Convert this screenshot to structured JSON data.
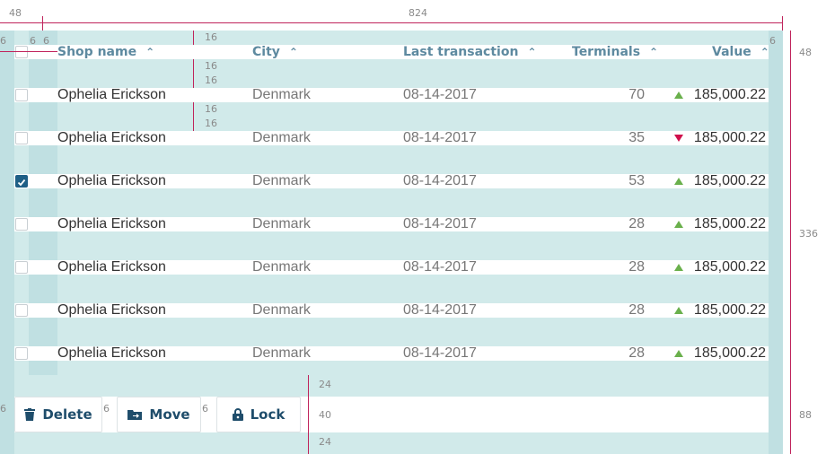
{
  "spec": {
    "margin_left": "48",
    "content_width": "824",
    "col_gap": "6",
    "header_height": "48",
    "table_height": "336",
    "toolbar_height": "88",
    "pad_16": "16",
    "pad_24": "24",
    "button_height": "40"
  },
  "table": {
    "columns": [
      "Shop name",
      "City",
      "Last transaction",
      "Terminals",
      "Value"
    ],
    "rows": [
      {
        "shop": "Ophelia Erickson",
        "city": "Denmark",
        "date": "08-14-2017",
        "terminals": "70",
        "trend": "up",
        "value": "185,000.22",
        "checked": false
      },
      {
        "shop": "Ophelia Erickson",
        "city": "Denmark",
        "date": "08-14-2017",
        "terminals": "35",
        "trend": "down",
        "value": "185,000.22",
        "checked": false
      },
      {
        "shop": "Ophelia Erickson",
        "city": "Denmark",
        "date": "08-14-2017",
        "terminals": "53",
        "trend": "up",
        "value": "185,000.22",
        "checked": true
      },
      {
        "shop": "Ophelia Erickson",
        "city": "Denmark",
        "date": "08-14-2017",
        "terminals": "28",
        "trend": "up",
        "value": "185,000.22",
        "checked": false
      },
      {
        "shop": "Ophelia Erickson",
        "city": "Denmark",
        "date": "08-14-2017",
        "terminals": "28",
        "trend": "up",
        "value": "185,000.22",
        "checked": false
      },
      {
        "shop": "Ophelia Erickson",
        "city": "Denmark",
        "date": "08-14-2017",
        "terminals": "28",
        "trend": "up",
        "value": "185,000.22",
        "checked": false
      },
      {
        "shop": "Ophelia Erickson",
        "city": "Denmark",
        "date": "08-14-2017",
        "terminals": "28",
        "trend": "up",
        "value": "185,000.22",
        "checked": false
      }
    ]
  },
  "toolbar": {
    "delete_label": "Delete",
    "move_label": "Move",
    "lock_label": "Lock"
  },
  "colors": {
    "accent": "#1e5f86",
    "up": "#6ab04c",
    "down": "#d0104c",
    "guide": "#c0245c"
  },
  "icons": [
    "trash-icon",
    "move-folder-icon",
    "lock-icon",
    "chevron-updown-icon",
    "checkmark-icon",
    "triangle-up-icon",
    "triangle-down-icon"
  ]
}
